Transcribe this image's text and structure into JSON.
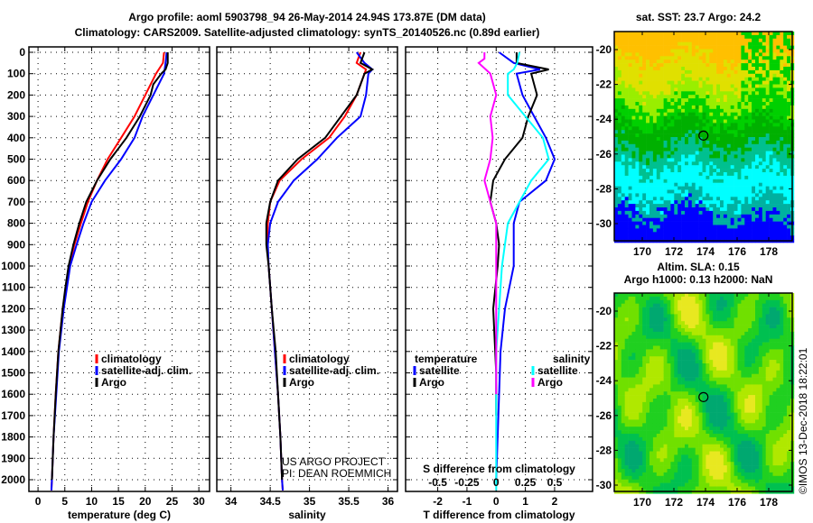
{
  "title_line1": "Argo profile: aoml 5903798_94 26-May-2014 24.94S 173.87E (DM data)",
  "title_line2": "Climatology: CARS2009. Satellite-adjusted climatology: synTS_20140526.nc (0.89d earlier)",
  "credit": "US ARGO PROJECT",
  "pi": "PI: DEAN ROEMMICH",
  "copyright": "©IMOS 13-Dec-2018 18:22:01",
  "colors": {
    "climatology": "#ff0000",
    "satellite": "#0000ff",
    "argo": "#000000",
    "sal_satellite": "#00ffff",
    "sal_argo": "#ff00ff"
  },
  "chart_data": [
    {
      "type": "line",
      "name": "temperature",
      "xlabel": "temperature (deg C)",
      "ylabel": "",
      "xlim": [
        -1.7,
        32
      ],
      "ylim": [
        2050,
        0
      ],
      "xticks": [
        0,
        5,
        10,
        15,
        20,
        25,
        30
      ],
      "yticks": [
        0,
        100,
        200,
        300,
        400,
        500,
        600,
        700,
        800,
        900,
        1000,
        1100,
        1200,
        1300,
        1400,
        1500,
        1600,
        1700,
        1800,
        1900,
        2000
      ],
      "legend": [
        "climatology",
        "satellite-adj. clim.",
        "Argo"
      ],
      "series": [
        {
          "name": "climatology",
          "color": "#ff0000",
          "depth": [
            0,
            50,
            100,
            200,
            300,
            400,
            500,
            600,
            700,
            800,
            900,
            1000,
            1200,
            1400,
            1600,
            1800,
            2000,
            2050
          ],
          "values": [
            23.5,
            23.3,
            22,
            20,
            18,
            15.5,
            13,
            11,
            9.3,
            8,
            6.8,
            5.8,
            4.6,
            3.8,
            3.3,
            2.9,
            2.6,
            2.5
          ]
        },
        {
          "name": "satellite-adj. clim.",
          "color": "#0000ff",
          "depth": [
            0,
            50,
            100,
            200,
            300,
            400,
            500,
            600,
            700,
            800,
            900,
            1000,
            1200,
            1400,
            1600,
            1800,
            2000,
            2050
          ],
          "values": [
            24,
            23.8,
            23.5,
            21.5,
            19.5,
            18,
            15.5,
            12.5,
            10,
            8.5,
            7.2,
            6,
            4.8,
            3.9,
            3.4,
            2.9,
            2.6,
            2.5
          ]
        },
        {
          "name": "Argo",
          "color": "#000000",
          "depth": [
            0,
            50,
            80,
            100,
            150,
            200,
            300,
            400,
            500,
            600,
            700,
            800,
            900,
            1000,
            1100,
            1200,
            1400,
            1600,
            1800,
            2000
          ],
          "values": [
            24.2,
            24.2,
            23.8,
            23,
            21.5,
            21,
            19,
            16.5,
            13.5,
            11,
            9,
            7.7,
            6.6,
            5.7,
            5.1,
            4.6,
            3.8,
            3.3,
            2.9,
            2.6
          ]
        }
      ]
    },
    {
      "type": "line",
      "name": "salinity",
      "xlabel": "salinity",
      "xlim": [
        33.82,
        36.12
      ],
      "ylim": [
        2050,
        0
      ],
      "xticks": [
        34,
        34.5,
        35,
        35.5,
        36
      ],
      "legend": [
        "climatology",
        "satellite-adj. clim.",
        "Argo"
      ],
      "series": [
        {
          "name": "climatology",
          "color": "#ff0000",
          "depth": [
            0,
            50,
            80,
            100,
            200,
            300,
            400,
            500,
            600,
            700,
            800,
            900,
            1000,
            1200,
            1400,
            1600,
            1800,
            2000,
            2050
          ],
          "values": [
            35.65,
            35.6,
            35.72,
            35.7,
            35.6,
            35.45,
            35.25,
            34.9,
            34.62,
            34.5,
            34.47,
            34.46,
            34.48,
            34.52,
            34.56,
            34.6,
            34.63,
            34.65,
            34.66
          ]
        },
        {
          "name": "satellite-adj. clim.",
          "color": "#0000ff",
          "depth": [
            0,
            50,
            80,
            100,
            200,
            300,
            400,
            500,
            600,
            700,
            800,
            900,
            1000,
            1200,
            1400,
            1600,
            1800,
            2000,
            2050
          ],
          "values": [
            35.6,
            35.7,
            35.8,
            35.75,
            35.72,
            35.65,
            35.35,
            35.1,
            34.8,
            34.6,
            34.5,
            34.47,
            34.48,
            34.52,
            34.56,
            34.6,
            34.63,
            34.65,
            34.66
          ]
        },
        {
          "name": "Argo",
          "color": "#000000",
          "depth": [
            0,
            50,
            80,
            100,
            200,
            300,
            400,
            500,
            600,
            700,
            800,
            900,
            1000,
            1200,
            1400,
            1600,
            1800,
            2000
          ],
          "values": [
            35.7,
            35.65,
            35.8,
            35.7,
            35.6,
            35.4,
            35.2,
            34.85,
            34.6,
            34.5,
            34.45,
            34.45,
            34.48,
            34.52,
            34.57,
            34.6,
            34.63,
            34.65
          ]
        }
      ]
    },
    {
      "type": "line",
      "name": "differences",
      "xlabel": "T difference from climatology",
      "xlabel2": "S difference from climatology",
      "xlim": [
        -3.1,
        3.3
      ],
      "ylim": [
        2050,
        0
      ],
      "xticks": [
        -2,
        -1,
        0,
        1,
        2
      ],
      "xticks_s": [
        "-0.5",
        "-0.25",
        "0",
        "0.25",
        "0.5"
      ],
      "xticks_s_values": [
        -0.5,
        -0.25,
        0,
        0.25,
        0.5
      ],
      "legend_t_title": "temperature",
      "legend_s_title": "salinity",
      "legend_t": [
        "satellite",
        "Argo"
      ],
      "legend_s": [
        "satellite",
        "Argo"
      ],
      "series": [
        {
          "name": "T satellite",
          "axis": "T",
          "color": "#0000ff",
          "depth": [
            0,
            50,
            80,
            100,
            200,
            300,
            400,
            500,
            600,
            700,
            800,
            900,
            1000,
            1200,
            1400,
            1800,
            2000
          ],
          "values": [
            0.1,
            0.6,
            1.5,
            0.7,
            0.9,
            1.3,
            1.7,
            2.0,
            1.7,
            0.8,
            0.6,
            0.6,
            0.6,
            0.3,
            0.15,
            0.05,
            0
          ]
        },
        {
          "name": "T Argo",
          "axis": "T",
          "color": "#000000",
          "depth": [
            0,
            50,
            80,
            100,
            200,
            300,
            400,
            500,
            600,
            700,
            800,
            900,
            1000,
            1200,
            1500,
            1700
          ],
          "values": [
            0.7,
            0.7,
            1.8,
            1.2,
            1.4,
            1.1,
            0.9,
            0.3,
            -0.1,
            -0.2,
            0,
            0.1,
            0.05,
            -0.1,
            0,
            0
          ]
        },
        {
          "name": "S satellite",
          "axis": "S",
          "color": "#00ffff",
          "depth": [
            0,
            50,
            80,
            100,
            200,
            300,
            400,
            500,
            600,
            700,
            800,
            1000,
            1400,
            2000,
            2050
          ],
          "values": [
            0.2,
            0.18,
            0.15,
            0.1,
            0.1,
            0.25,
            0.4,
            0.45,
            0.3,
            0.2,
            0.1,
            0.05,
            0,
            0,
            0
          ]
        },
        {
          "name": "S Argo",
          "axis": "S",
          "color": "#ff00ff",
          "depth": [
            0,
            30,
            50,
            100,
            200,
            300,
            400,
            500,
            600,
            700,
            800,
            1000,
            1300,
            1600
          ],
          "values": [
            -0.1,
            -0.1,
            -0.15,
            -0.05,
            0,
            -0.05,
            -0.03,
            -0.05,
            -0.1,
            -0.05,
            0,
            0,
            0,
            0
          ]
        }
      ]
    }
  ],
  "maps": {
    "sst_title": "sat. SST: 23.7 Argo: 24.2",
    "sla_title1": "Altim. SLA: 0.15",
    "sla_title2": "Argo h1000: 0.13 h2000: NaN",
    "lon_ticks": [
      "170",
      "172",
      "174",
      "176",
      "178"
    ],
    "lat_ticks": [
      "-20",
      "-22",
      "-24",
      "-26",
      "-28",
      "-30"
    ],
    "float_lon": 173.87,
    "float_lat": -24.94
  }
}
